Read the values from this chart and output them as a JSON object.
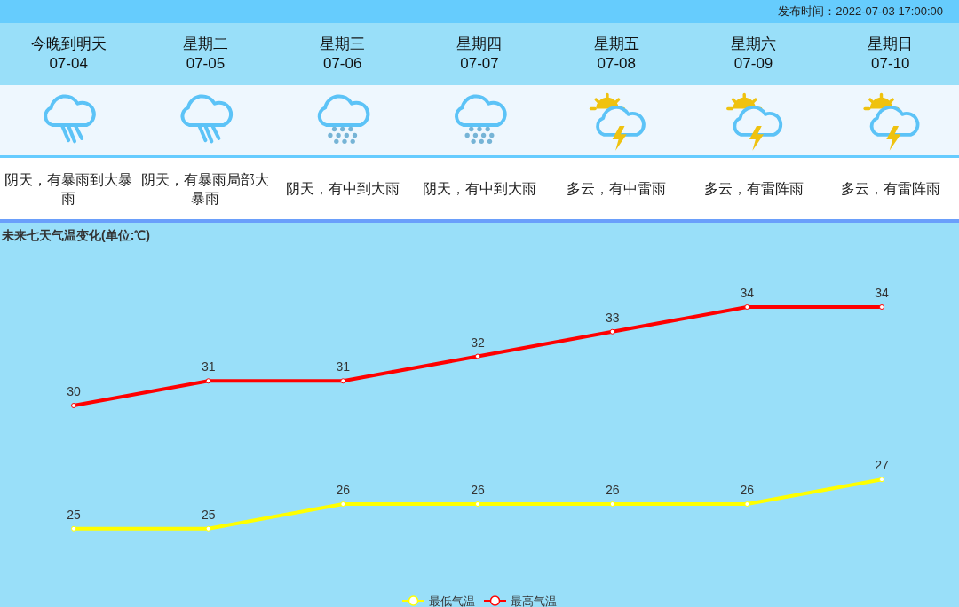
{
  "chart_data": [
    {
      "type": "other",
      "annotations": [
        "发布时间：2022-07-03 17:00:00",
        "阴天，有暴雨到大暴雨",
        "阴天，有暴雨局部大暴雨",
        "阴天，有中到大雨",
        "阴天，有中到大雨",
        "多云，有中雷雨",
        "多云，有雷阵雨",
        "多云，有雷阵雨"
      ],
      "categories": [
        "今晚到明天\n07-04",
        "星期二\n07-05",
        "星期三\n07-06",
        "星期四\n07-07",
        "星期五\n07-08",
        "星期六\n07-09",
        "星期日\n07-10"
      ]
    },
    {
      "type": "line",
      "title": "未来七天气温变化(单位:℃)",
      "categories": [
        null,
        null,
        null,
        null,
        null,
        null,
        null
      ],
      "series": [
        {
          "name": "最低气温",
          "color": "#ffff00",
          "values": [
            25,
            25,
            26,
            26,
            26,
            26,
            27
          ]
        },
        {
          "name": "最高气温",
          "color": "#ff0000",
          "values": [
            30,
            31,
            31,
            32,
            33,
            34,
            34
          ]
        }
      ],
      "tick_labels": false,
      "data_labels": true,
      "legend": "bottom",
      "marker": "circle",
      "line_style": "solid"
    }
  ]
}
